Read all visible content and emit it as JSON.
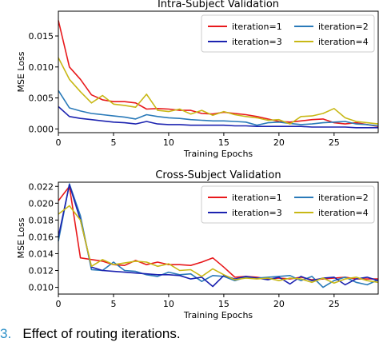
{
  "caption": {
    "number": "3.",
    "text": "Effect of routing iterations."
  },
  "chart_data": [
    {
      "type": "line",
      "title": "Intra-Subject Validation",
      "xlabel": "Training Epochs",
      "ylabel": "MSE Loss",
      "xlim": [
        0,
        29
      ],
      "ylim": [
        -0.0006,
        0.019
      ],
      "xticks": [
        0,
        5,
        10,
        15,
        20,
        25
      ],
      "yticks": [
        0.0,
        0.005,
        0.01,
        0.015
      ],
      "ytick_labels": [
        "0.000",
        "0.005",
        "0.010",
        "0.015"
      ],
      "grid": false,
      "legend": "top-right",
      "series": [
        {
          "name": "iteration=1",
          "color": "#e8191c",
          "x": [
            0,
            1,
            2,
            3,
            4,
            5,
            6,
            7,
            8,
            9,
            10,
            11,
            12,
            13,
            14,
            15,
            16,
            17,
            18,
            19,
            20,
            21,
            22,
            23,
            24,
            25,
            26,
            27,
            28,
            29
          ],
          "values": [
            0.0175,
            0.01,
            0.008,
            0.0055,
            0.0047,
            0.0044,
            0.0044,
            0.0042,
            0.0032,
            0.0033,
            0.0032,
            0.003,
            0.003,
            0.0025,
            0.0024,
            0.0027,
            0.0025,
            0.0023,
            0.002,
            0.0016,
            0.0012,
            0.0011,
            0.0013,
            0.0015,
            0.0016,
            0.001,
            0.0008,
            0.001,
            0.0007,
            0.0004
          ]
        },
        {
          "name": "iteration=2",
          "color": "#2a7ab9",
          "x": [
            0,
            1,
            2,
            3,
            4,
            5,
            6,
            7,
            8,
            9,
            10,
            11,
            12,
            13,
            14,
            15,
            16,
            17,
            18,
            19,
            20,
            21,
            22,
            23,
            24,
            25,
            26,
            27,
            28,
            29
          ],
          "values": [
            0.0062,
            0.0034,
            0.0029,
            0.0025,
            0.0023,
            0.0021,
            0.0019,
            0.0016,
            0.0023,
            0.002,
            0.0018,
            0.0017,
            0.0015,
            0.0014,
            0.0013,
            0.0013,
            0.0012,
            0.0011,
            0.0006,
            0.001,
            0.0011,
            0.0009,
            0.0007,
            0.0008,
            0.001,
            0.0011,
            0.0012,
            0.0008,
            0.0007,
            0.0005
          ]
        },
        {
          "name": "iteration=3",
          "color": "#1c23b0",
          "x": [
            0,
            1,
            2,
            3,
            4,
            5,
            6,
            7,
            8,
            9,
            10,
            11,
            12,
            13,
            14,
            15,
            16,
            17,
            18,
            19,
            20,
            21,
            22,
            23,
            24,
            25,
            26,
            27,
            28,
            29
          ],
          "values": [
            0.0036,
            0.002,
            0.0017,
            0.0015,
            0.0013,
            0.0011,
            0.001,
            0.0008,
            0.0012,
            0.0008,
            0.0007,
            0.0007,
            0.0006,
            0.0006,
            0.0006,
            0.0006,
            0.0005,
            0.0005,
            0.0004,
            0.0004,
            0.0004,
            0.0004,
            0.0004,
            0.0003,
            0.0003,
            0.0003,
            0.0003,
            0.0002,
            0.0002,
            0.0002
          ]
        },
        {
          "name": "iteration=4",
          "color": "#c8b816",
          "x": [
            0,
            1,
            2,
            3,
            4,
            5,
            6,
            7,
            8,
            9,
            10,
            11,
            12,
            13,
            14,
            15,
            16,
            17,
            18,
            19,
            20,
            21,
            22,
            23,
            24,
            25,
            26,
            27,
            28,
            29
          ],
          "values": [
            0.0115,
            0.008,
            0.006,
            0.0042,
            0.0054,
            0.004,
            0.0038,
            0.0035,
            0.0056,
            0.003,
            0.0028,
            0.0032,
            0.0024,
            0.003,
            0.0022,
            0.0028,
            0.0023,
            0.002,
            0.0018,
            0.0014,
            0.0015,
            0.0008,
            0.002,
            0.0021,
            0.0025,
            0.0033,
            0.0018,
            0.0012,
            0.001,
            0.0008
          ]
        }
      ]
    },
    {
      "type": "line",
      "title": "Cross-Subject Validation",
      "xlabel": "Training Epochs",
      "ylabel": "MSE Loss",
      "xlim": [
        0,
        29
      ],
      "ylim": [
        0.0092,
        0.0225
      ],
      "xticks": [
        0,
        5,
        10,
        15,
        20,
        25
      ],
      "yticks": [
        0.01,
        0.012,
        0.014,
        0.016,
        0.018,
        0.02,
        0.022
      ],
      "ytick_labels": [
        "0.010",
        "0.012",
        "0.014",
        "0.016",
        "0.018",
        "0.020",
        "0.022"
      ],
      "grid": false,
      "legend": "top-right",
      "series": [
        {
          "name": "iteration=1",
          "color": "#e8191c",
          "x": [
            0,
            1,
            2,
            3,
            4,
            5,
            6,
            7,
            8,
            9,
            10,
            11,
            12,
            13,
            14,
            15,
            16,
            17,
            18,
            19,
            20,
            21,
            22,
            23,
            24,
            25,
            26,
            27,
            28,
            29
          ],
          "values": [
            0.0203,
            0.022,
            0.0135,
            0.0133,
            0.0131,
            0.0127,
            0.0126,
            0.0132,
            0.0127,
            0.013,
            0.0127,
            0.0127,
            0.0126,
            0.013,
            0.0135,
            0.0124,
            0.0112,
            0.0113,
            0.0112,
            0.011,
            0.0111,
            0.011,
            0.0112,
            0.0109,
            0.011,
            0.0111,
            0.0112,
            0.011,
            0.011,
            0.011
          ]
        },
        {
          "name": "iteration=2",
          "color": "#2a7ab9",
          "x": [
            0,
            1,
            2,
            3,
            4,
            5,
            6,
            7,
            8,
            9,
            10,
            11,
            12,
            13,
            14,
            15,
            16,
            17,
            18,
            19,
            20,
            21,
            22,
            23,
            24,
            25,
            26,
            27,
            28,
            29
          ],
          "values": [
            0.0155,
            0.0223,
            0.0185,
            0.0121,
            0.012,
            0.013,
            0.012,
            0.0119,
            0.0115,
            0.0113,
            0.0118,
            0.0115,
            0.0116,
            0.0107,
            0.0114,
            0.0113,
            0.0108,
            0.0112,
            0.0111,
            0.0112,
            0.0113,
            0.0114,
            0.0108,
            0.0113,
            0.01,
            0.0108,
            0.0112,
            0.0106,
            0.0103,
            0.0109
          ]
        },
        {
          "name": "iteration=3",
          "color": "#1c23b0",
          "x": [
            0,
            1,
            2,
            3,
            4,
            5,
            6,
            7,
            8,
            9,
            10,
            11,
            12,
            13,
            14,
            15,
            16,
            17,
            18,
            19,
            20,
            21,
            22,
            23,
            24,
            25,
            26,
            27,
            28,
            29
          ],
          "values": [
            0.016,
            0.0222,
            0.018,
            0.0124,
            0.012,
            0.0119,
            0.0118,
            0.0117,
            0.0116,
            0.0115,
            0.0115,
            0.0114,
            0.011,
            0.0112,
            0.0101,
            0.0114,
            0.011,
            0.0113,
            0.0111,
            0.0109,
            0.0112,
            0.0104,
            0.0113,
            0.0108,
            0.0111,
            0.0112,
            0.0103,
            0.011,
            0.0112,
            0.0108
          ]
        },
        {
          "name": "iteration=4",
          "color": "#c8b816",
          "x": [
            0,
            1,
            2,
            3,
            4,
            5,
            6,
            7,
            8,
            9,
            10,
            11,
            12,
            13,
            14,
            15,
            16,
            17,
            18,
            19,
            20,
            21,
            22,
            23,
            24,
            25,
            26,
            27,
            28,
            29
          ],
          "values": [
            0.0187,
            0.0197,
            0.018,
            0.0125,
            0.0133,
            0.0127,
            0.0129,
            0.0131,
            0.013,
            0.0125,
            0.0128,
            0.012,
            0.0121,
            0.0113,
            0.0122,
            0.0115,
            0.0109,
            0.0111,
            0.011,
            0.0111,
            0.0108,
            0.0111,
            0.011,
            0.0106,
            0.0111,
            0.0105,
            0.011,
            0.0112,
            0.0108,
            0.0106
          ]
        }
      ]
    }
  ]
}
